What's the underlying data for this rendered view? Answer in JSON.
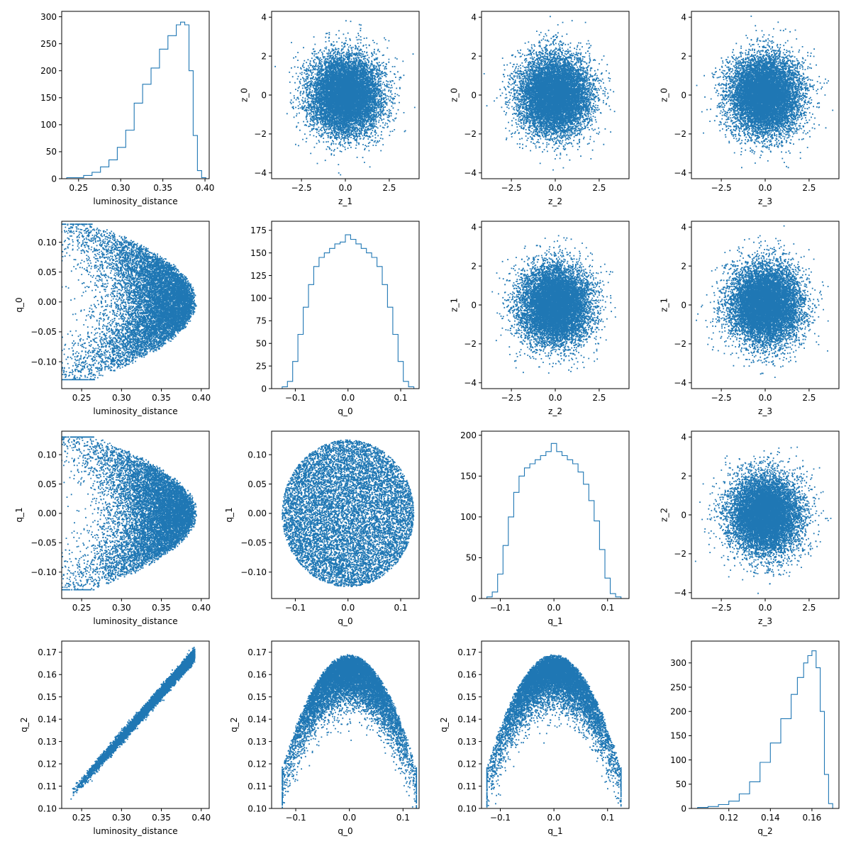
{
  "figure": {
    "background": "#ffffff",
    "color": "#1f77b4"
  },
  "chart_data": [
    {
      "type": "histogram",
      "xlabel": "luminosity_distance",
      "ylabel": "",
      "xlim": [
        0.23,
        0.405
      ],
      "ylim": [
        0,
        310
      ],
      "xticks": [
        0.25,
        0.3,
        0.35,
        0.4
      ],
      "xticklabels": [
        "0.25",
        "0.30",
        "0.35",
        "0.40"
      ],
      "yticks": [
        0,
        50,
        100,
        150,
        200,
        250,
        300
      ],
      "yticklabels": [
        "0",
        "50",
        "100",
        "150",
        "200",
        "250",
        "300"
      ],
      "bin_edges": [
        0.236,
        0.246,
        0.256,
        0.266,
        0.276,
        0.286,
        0.296,
        0.306,
        0.316,
        0.326,
        0.336,
        0.346,
        0.356,
        0.366,
        0.371,
        0.376,
        0.381,
        0.386,
        0.391,
        0.396,
        0.401
      ],
      "counts": [
        2,
        2,
        6,
        12,
        22,
        35,
        58,
        90,
        140,
        175,
        205,
        240,
        265,
        285,
        290,
        285,
        200,
        80,
        15,
        2
      ]
    },
    {
      "type": "scatter",
      "xlabel": "z_1",
      "ylabel": "z_0",
      "xlim": [
        -4.2,
        4.2
      ],
      "ylim": [
        -4.3,
        4.3
      ],
      "xticks": [
        -2.5,
        0,
        2.5
      ],
      "xticklabels": [
        "−2.5",
        "0.0",
        "2.5"
      ],
      "yticks": [
        -4,
        -2,
        0,
        2,
        4
      ],
      "yticklabels": [
        "−4",
        "−2",
        "0",
        "2",
        "4"
      ],
      "distribution": {
        "x": {
          "kind": "normal",
          "mean": 0.0,
          "sd": 1.0
        },
        "y": {
          "kind": "normal",
          "mean": 0.0,
          "sd": 1.0
        },
        "n": 10000
      }
    },
    {
      "type": "scatter",
      "xlabel": "z_2",
      "ylabel": "z_0",
      "xlim": [
        -4.2,
        4.2
      ],
      "ylim": [
        -4.3,
        4.3
      ],
      "xticks": [
        -2.5,
        0,
        2.5
      ],
      "xticklabels": [
        "−2.5",
        "0.0",
        "2.5"
      ],
      "yticks": [
        -4,
        -2,
        0,
        2,
        4
      ],
      "yticklabels": [
        "−4",
        "−2",
        "0",
        "2",
        "4"
      ],
      "distribution": {
        "x": {
          "kind": "normal",
          "mean": 0.0,
          "sd": 1.0
        },
        "y": {
          "kind": "normal",
          "mean": 0.0,
          "sd": 1.0
        },
        "n": 10000
      }
    },
    {
      "type": "scatter",
      "xlabel": "z_3",
      "ylabel": "z_0",
      "xlim": [
        -4.2,
        4.2
      ],
      "ylim": [
        -4.3,
        4.3
      ],
      "xticks": [
        -2.5,
        0,
        2.5
      ],
      "xticklabels": [
        "−2.5",
        "0.0",
        "2.5"
      ],
      "yticks": [
        -4,
        -2,
        0,
        2,
        4
      ],
      "yticklabels": [
        "−4",
        "−2",
        "0",
        "2",
        "4"
      ],
      "distribution": {
        "x": {
          "kind": "normal",
          "mean": 0.0,
          "sd": 1.0
        },
        "y": {
          "kind": "normal",
          "mean": 0.0,
          "sd": 1.0
        },
        "n": 10000
      }
    },
    {
      "type": "scatter",
      "xlabel": "luminosity_distance",
      "ylabel": "q_0",
      "xlim": [
        0.225,
        0.41
      ],
      "ylim": [
        -0.145,
        0.135
      ],
      "xticks": [
        0.25,
        0.3,
        0.35,
        0.4
      ],
      "xticklabels": [
        "0.25",
        "0.30",
        "0.35",
        "0.40"
      ],
      "yticks": [
        -0.1,
        -0.05,
        0.0,
        0.05,
        0.1
      ],
      "yticklabels": [
        "−0.10",
        "−0.05",
        "0.00",
        "0.05",
        "0.10"
      ],
      "distribution": {
        "kind": "crescent",
        "q_sd": 0.055,
        "d_max": 0.395,
        "curvature": 7.5,
        "d_spread": 0.05,
        "n": 10000
      }
    },
    {
      "type": "histogram",
      "xlabel": "q_0",
      "ylabel": "",
      "xlim": [
        -0.145,
        0.135
      ],
      "ylim": [
        0,
        185
      ],
      "xticks": [
        -0.1,
        0.0,
        0.1
      ],
      "xticklabels": [
        "−0.1",
        "0.0",
        "0.1"
      ],
      "yticks": [
        0,
        25,
        50,
        75,
        100,
        125,
        150,
        175
      ],
      "yticklabels": [
        "0",
        "25",
        "50",
        "75",
        "100",
        "125",
        "150",
        "175"
      ],
      "bin_edges": [
        -0.125,
        -0.115,
        -0.105,
        -0.095,
        -0.085,
        -0.075,
        -0.065,
        -0.055,
        -0.045,
        -0.035,
        -0.025,
        -0.015,
        -0.005,
        0.005,
        0.015,
        0.025,
        0.035,
        0.045,
        0.055,
        0.065,
        0.075,
        0.085,
        0.095,
        0.105,
        0.115,
        0.125
      ],
      "counts": [
        2,
        8,
        30,
        60,
        90,
        115,
        135,
        145,
        150,
        155,
        160,
        162,
        170,
        165,
        160,
        155,
        150,
        145,
        135,
        115,
        90,
        60,
        30,
        8,
        2
      ]
    },
    {
      "type": "scatter",
      "xlabel": "z_2",
      "ylabel": "z_1",
      "xlim": [
        -4.2,
        4.2
      ],
      "ylim": [
        -4.3,
        4.3
      ],
      "xticks": [
        -2.5,
        0,
        2.5
      ],
      "xticklabels": [
        "−2.5",
        "0.0",
        "2.5"
      ],
      "yticks": [
        -4,
        -2,
        0,
        2,
        4
      ],
      "yticklabels": [
        "−4",
        "−2",
        "0",
        "2",
        "4"
      ],
      "distribution": {
        "x": {
          "kind": "normal",
          "mean": 0.0,
          "sd": 1.0
        },
        "y": {
          "kind": "normal",
          "mean": 0.0,
          "sd": 1.0
        },
        "n": 10000
      }
    },
    {
      "type": "scatter",
      "xlabel": "z_3",
      "ylabel": "z_1",
      "xlim": [
        -4.2,
        4.2
      ],
      "ylim": [
        -4.3,
        4.3
      ],
      "xticks": [
        -2.5,
        0,
        2.5
      ],
      "xticklabels": [
        "−2.5",
        "0.0",
        "2.5"
      ],
      "yticks": [
        -4,
        -2,
        0,
        2,
        4
      ],
      "yticklabels": [
        "−4",
        "−2",
        "0",
        "2",
        "4"
      ],
      "distribution": {
        "x": {
          "kind": "normal",
          "mean": 0.0,
          "sd": 1.0
        },
        "y": {
          "kind": "normal",
          "mean": 0.0,
          "sd": 1.0
        },
        "n": 10000
      }
    },
    {
      "type": "scatter",
      "xlabel": "luminosity_distance",
      "ylabel": "q_1",
      "xlim": [
        0.225,
        0.41
      ],
      "ylim": [
        -0.145,
        0.14
      ],
      "xticks": [
        0.25,
        0.3,
        0.35,
        0.4
      ],
      "xticklabels": [
        "0.25",
        "0.30",
        "0.35",
        "0.40"
      ],
      "yticks": [
        -0.1,
        -0.05,
        0.0,
        0.05,
        0.1
      ],
      "yticklabels": [
        "−0.10",
        "−0.05",
        "0.00",
        "0.05",
        "0.10"
      ],
      "distribution": {
        "kind": "crescent",
        "q_sd": 0.055,
        "d_max": 0.395,
        "curvature": 7.5,
        "d_spread": 0.05,
        "n": 10000
      }
    },
    {
      "type": "scatter",
      "xlabel": "q_0",
      "ylabel": "q_1",
      "xlim": [
        -0.145,
        0.135
      ],
      "ylim": [
        -0.145,
        0.14
      ],
      "xticks": [
        -0.1,
        0.0,
        0.1
      ],
      "xticklabels": [
        "−0.1",
        "0.0",
        "0.1"
      ],
      "yticks": [
        -0.1,
        -0.05,
        0.0,
        0.05,
        0.1
      ],
      "yticklabels": [
        "−0.10",
        "−0.05",
        "0.00",
        "0.05",
        "0.10"
      ],
      "distribution": {
        "kind": "disk",
        "radius": 0.125,
        "center": [
          0,
          0
        ],
        "n": 10000
      }
    },
    {
      "type": "histogram",
      "xlabel": "q_1",
      "ylabel": "",
      "xlim": [
        -0.135,
        0.14
      ],
      "ylim": [
        0,
        205
      ],
      "xticks": [
        -0.1,
        0.0,
        0.1
      ],
      "xticklabels": [
        "−0.1",
        "0.0",
        "0.1"
      ],
      "yticks": [
        0,
        50,
        100,
        150,
        200
      ],
      "yticklabels": [
        "0",
        "50",
        "100",
        "150",
        "200"
      ],
      "bin_edges": [
        -0.125,
        -0.115,
        -0.105,
        -0.095,
        -0.085,
        -0.075,
        -0.065,
        -0.055,
        -0.045,
        -0.035,
        -0.025,
        -0.015,
        -0.005,
        0.005,
        0.015,
        0.025,
        0.035,
        0.045,
        0.055,
        0.065,
        0.075,
        0.085,
        0.095,
        0.105,
        0.115,
        0.125
      ],
      "counts": [
        2,
        8,
        30,
        65,
        100,
        130,
        150,
        160,
        165,
        170,
        175,
        180,
        190,
        180,
        175,
        170,
        165,
        155,
        140,
        120,
        95,
        60,
        25,
        6,
        2
      ]
    },
    {
      "type": "scatter",
      "xlabel": "z_3",
      "ylabel": "z_2",
      "xlim": [
        -4.2,
        4.2
      ],
      "ylim": [
        -4.3,
        4.3
      ],
      "xticks": [
        -2.5,
        0,
        2.5
      ],
      "xticklabels": [
        "−2.5",
        "0.0",
        "2.5"
      ],
      "yticks": [
        -4,
        -2,
        0,
        2,
        4
      ],
      "yticklabels": [
        "−4",
        "−2",
        "0",
        "2",
        "4"
      ],
      "distribution": {
        "x": {
          "kind": "normal",
          "mean": 0.0,
          "sd": 1.0
        },
        "y": {
          "kind": "normal",
          "mean": 0.0,
          "sd": 1.0
        },
        "n": 10000
      }
    },
    {
      "type": "scatter",
      "xlabel": "luminosity_distance",
      "ylabel": "q_2",
      "xlim": [
        0.225,
        0.41
      ],
      "ylim": [
        0.1,
        0.175
      ],
      "xticks": [
        0.25,
        0.3,
        0.35,
        0.4
      ],
      "xticklabels": [
        "0.25",
        "0.30",
        "0.35",
        "0.40"
      ],
      "yticks": [
        0.1,
        0.11,
        0.12,
        0.13,
        0.14,
        0.15,
        0.16,
        0.17
      ],
      "yticklabels": [
        "0.10",
        "0.11",
        "0.12",
        "0.13",
        "0.14",
        "0.15",
        "0.16",
        "0.17"
      ],
      "distribution": {
        "kind": "linear",
        "x_range": [
          0.236,
          0.392
        ],
        "slope": 0.404,
        "intercept": 0.0105,
        "noise_sd": 0.0012,
        "n": 10000
      }
    },
    {
      "type": "scatter",
      "xlabel": "q_0",
      "ylabel": "q_2",
      "xlim": [
        -0.145,
        0.13
      ],
      "ylim": [
        0.1,
        0.175
      ],
      "xticks": [
        -0.1,
        0.0,
        0.1
      ],
      "xticklabels": [
        "−0.1",
        "0.0",
        "0.1"
      ],
      "yticks": [
        0.1,
        0.11,
        0.12,
        0.13,
        0.14,
        0.15,
        0.16,
        0.17
      ],
      "yticklabels": [
        "0.10",
        "0.11",
        "0.12",
        "0.13",
        "0.14",
        "0.15",
        "0.16",
        "0.17"
      ],
      "distribution": {
        "kind": "dome",
        "top": 0.169,
        "curvature": 3.2,
        "q_sd": 0.055,
        "n": 10000
      }
    },
    {
      "type": "scatter",
      "xlabel": "q_1",
      "ylabel": "q_2",
      "xlim": [
        -0.135,
        0.14
      ],
      "ylim": [
        0.1,
        0.175
      ],
      "xticks": [
        -0.1,
        0.0,
        0.1
      ],
      "xticklabels": [
        "−0.1",
        "0.0",
        "0.1"
      ],
      "yticks": [
        0.1,
        0.11,
        0.12,
        0.13,
        0.14,
        0.15,
        0.16,
        0.17
      ],
      "yticklabels": [
        "0.10",
        "0.11",
        "0.12",
        "0.13",
        "0.14",
        "0.15",
        "0.16",
        "0.17"
      ],
      "distribution": {
        "kind": "dome",
        "top": 0.169,
        "curvature": 3.2,
        "q_sd": 0.055,
        "n": 10000
      }
    },
    {
      "type": "histogram",
      "xlabel": "q_2",
      "ylabel": "",
      "xlim": [
        0.102,
        0.173
      ],
      "ylim": [
        0,
        345
      ],
      "xticks": [
        0.12,
        0.14,
        0.16
      ],
      "xticklabels": [
        "0.12",
        "0.14",
        "0.16"
      ],
      "yticks": [
        0,
        50,
        100,
        150,
        200,
        250,
        300
      ],
      "yticklabels": [
        "0",
        "50",
        "100",
        "150",
        "200",
        "250",
        "300"
      ],
      "bin_edges": [
        0.105,
        0.11,
        0.115,
        0.12,
        0.125,
        0.13,
        0.135,
        0.14,
        0.145,
        0.15,
        0.153,
        0.156,
        0.158,
        0.16,
        0.162,
        0.164,
        0.166,
        0.168,
        0.17
      ],
      "counts": [
        2,
        4,
        8,
        15,
        30,
        55,
        95,
        135,
        185,
        235,
        270,
        300,
        315,
        325,
        290,
        200,
        70,
        10
      ]
    }
  ]
}
